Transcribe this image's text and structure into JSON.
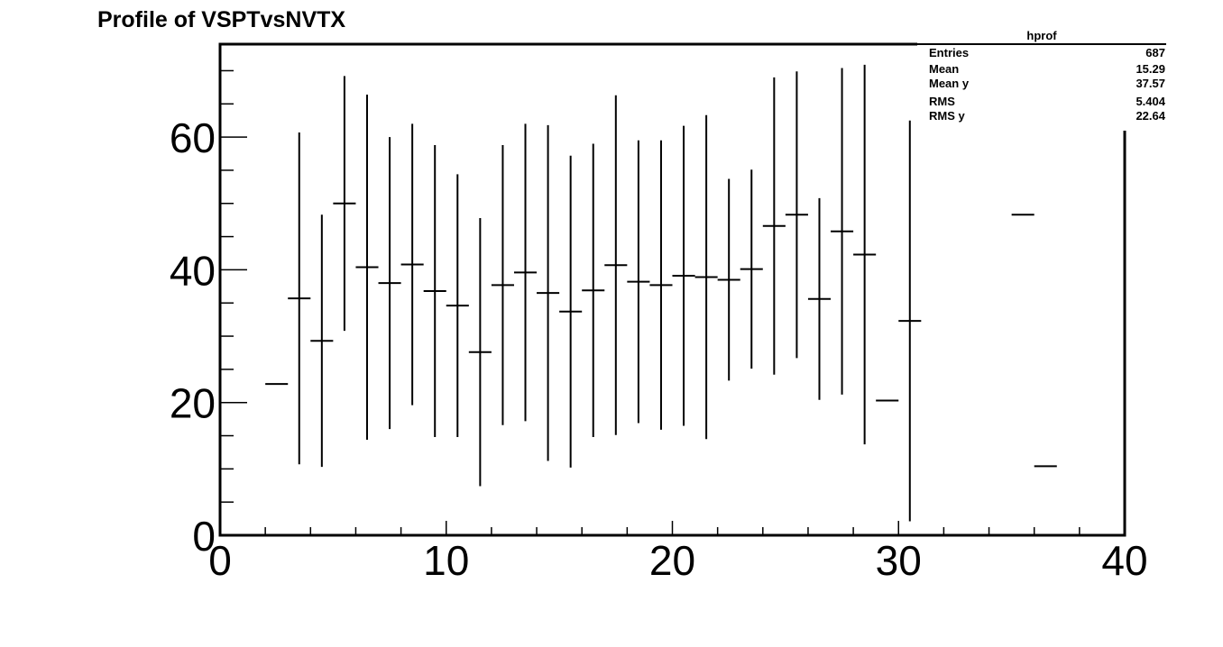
{
  "chart_data": {
    "type": "scatter",
    "title": "Profile of VSPTvsNVTX",
    "xlabel": "",
    "ylabel": "",
    "xlim": [
      0,
      40
    ],
    "ylim": [
      0,
      74
    ],
    "x_ticks": [
      "0",
      "10",
      "20",
      "30",
      "40"
    ],
    "y_ticks": [
      "0",
      "20",
      "40",
      "60"
    ],
    "grid": false,
    "bin_width": 1,
    "points": [
      {
        "x": 2.5,
        "y": 22.8,
        "err": 0
      },
      {
        "x": 3.5,
        "y": 35.7,
        "err": 25
      },
      {
        "x": 4.5,
        "y": 29.3,
        "err": 19
      },
      {
        "x": 5.5,
        "y": 50.0,
        "err": 19.2
      },
      {
        "x": 6.5,
        "y": 40.4,
        "err": 26
      },
      {
        "x": 7.5,
        "y": 38.0,
        "err": 22
      },
      {
        "x": 8.5,
        "y": 40.8,
        "err": 21.2
      },
      {
        "x": 9.5,
        "y": 36.8,
        "err": 22
      },
      {
        "x": 10.5,
        "y": 34.6,
        "err": 19.8
      },
      {
        "x": 11.5,
        "y": 27.6,
        "err": 20.2
      },
      {
        "x": 12.5,
        "y": 37.7,
        "err": 21.1
      },
      {
        "x": 13.5,
        "y": 39.6,
        "err": 22.4
      },
      {
        "x": 14.5,
        "y": 36.5,
        "err": 25.3
      },
      {
        "x": 15.5,
        "y": 33.7,
        "err": 23.5
      },
      {
        "x": 16.5,
        "y": 36.9,
        "err": 22.1
      },
      {
        "x": 17.5,
        "y": 40.7,
        "err": 25.6
      },
      {
        "x": 18.5,
        "y": 38.2,
        "err": 21.3
      },
      {
        "x": 19.5,
        "y": 37.7,
        "err": 21.8
      },
      {
        "x": 20.5,
        "y": 39.1,
        "err": 22.6
      },
      {
        "x": 21.5,
        "y": 38.9,
        "err": 24.4
      },
      {
        "x": 22.5,
        "y": 38.5,
        "err": 15.2
      },
      {
        "x": 23.5,
        "y": 40.1,
        "err": 15.0
      },
      {
        "x": 24.5,
        "y": 46.6,
        "err": 22.4
      },
      {
        "x": 25.5,
        "y": 48.3,
        "err": 21.6
      },
      {
        "x": 26.5,
        "y": 35.6,
        "err": 15.2
      },
      {
        "x": 27.5,
        "y": 45.8,
        "err": 24.6
      },
      {
        "x": 28.5,
        "y": 42.3,
        "err": 28.6
      },
      {
        "x": 29.5,
        "y": 20.3,
        "err": 0
      },
      {
        "x": 30.5,
        "y": 32.3,
        "err": 30.2
      },
      {
        "x": 35.5,
        "y": 48.3,
        "err": 0
      },
      {
        "x": 36.5,
        "y": 10.4,
        "err": 0
      }
    ],
    "legend": "top-right"
  },
  "stats": {
    "title": "hprof",
    "rows": [
      {
        "key": "Entries",
        "value": "687"
      },
      {
        "key": "Mean",
        "value": "15.29"
      },
      {
        "key": "Mean y",
        "value": "37.57"
      },
      {
        "key": "RMS",
        "value": "5.404"
      },
      {
        "key": "RMS y",
        "value": "22.64"
      }
    ]
  }
}
